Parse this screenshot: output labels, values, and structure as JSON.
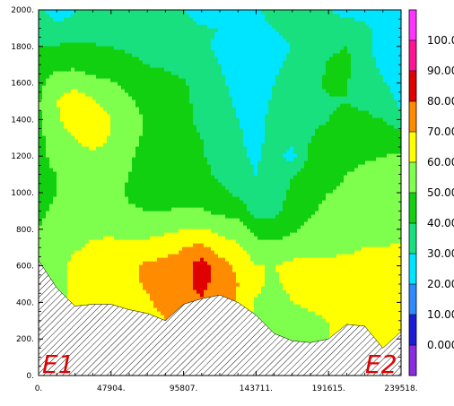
{
  "chart_data": {
    "type": "heatmap",
    "title": "",
    "xlabel": "",
    "ylabel": "",
    "xlim": [
      0,
      239518
    ],
    "ylim": [
      0,
      2000
    ],
    "x_tick_labels": [
      "0.",
      "47904.",
      "95807.",
      "143711.",
      "191615.",
      "239518."
    ],
    "y_tick_labels": [
      "0.",
      "200.",
      "400.",
      "600.",
      "800.",
      "1000.",
      "1200.",
      "1400.",
      "1600.",
      "1800.",
      "2000."
    ],
    "section_labels": {
      "start": "E1",
      "end": "E2"
    },
    "colorbar": {
      "labels": [
        "0.000",
        "10.00",
        "20.00",
        "30.00",
        "40.00",
        "50.00",
        "60.00",
        "70.00",
        "80.00",
        "90.00",
        "100.0"
      ],
      "levels": [
        0,
        10,
        20,
        30,
        40,
        50,
        60,
        70,
        80,
        90,
        100
      ],
      "colors": [
        "#8a2be2",
        "#1c1cd8",
        "#2e8bff",
        "#00e5ff",
        "#19e07f",
        "#10d010",
        "#7fff4d",
        "#ffff00",
        "#ff8c00",
        "#e00000",
        "#ff1493",
        "#ff33ff"
      ]
    },
    "x": [
      0,
      11976,
      23952,
      35928,
      47904,
      59880,
      71855,
      83831,
      95807,
      107783,
      119759,
      131735,
      143711,
      155687,
      167663,
      179639,
      191615,
      203590,
      215566,
      227542,
      239518
    ],
    "y": [
      0,
      100,
      200,
      300,
      400,
      500,
      600,
      700,
      800,
      900,
      1000,
      1100,
      1200,
      1300,
      1400,
      1500,
      1600,
      1700,
      1800,
      1900,
      2000
    ],
    "terrain": [
      630,
      480,
      380,
      390,
      390,
      360,
      340,
      300,
      390,
      420,
      440,
      400,
      330,
      230,
      190,
      180,
      200,
      280,
      270,
      150,
      240
    ],
    "values": [
      [
        55,
        57,
        59,
        60,
        60,
        62,
        65,
        70,
        75,
        76,
        74,
        65,
        57,
        52,
        55,
        58,
        60,
        62,
        65,
        66,
        66
      ],
      [
        55,
        57,
        59,
        60,
        60,
        62,
        65,
        70,
        75,
        76,
        74,
        65,
        57,
        52,
        55,
        58,
        60,
        62,
        65,
        66,
        66
      ],
      [
        55,
        57,
        59,
        60,
        60,
        62,
        65,
        70,
        75,
        76,
        74,
        65,
        57,
        52,
        55,
        58,
        60,
        62,
        65,
        66,
        66
      ],
      [
        55,
        57,
        59,
        60,
        60,
        62,
        65,
        70,
        75,
        76,
        74,
        65,
        57,
        52,
        55,
        58,
        60,
        62,
        65,
        66,
        66
      ],
      [
        55,
        58,
        61,
        63,
        64,
        66,
        69,
        73,
        77,
        79,
        76,
        68,
        59,
        54,
        60,
        62,
        63,
        64,
        66,
        66,
        66
      ],
      [
        54,
        58,
        62,
        66,
        67,
        68,
        71,
        74,
        78,
        82,
        77,
        70,
        62,
        58,
        63,
        64,
        64,
        64,
        64,
        64,
        64
      ],
      [
        52,
        57,
        63,
        67,
        69,
        68,
        72,
        74,
        75,
        86,
        75,
        68,
        60,
        60,
        63,
        62,
        62,
        62,
        62,
        62,
        62
      ],
      [
        52,
        56,
        59,
        62,
        64,
        63,
        64,
        66,
        70,
        73,
        66,
        62,
        55,
        53,
        55,
        57,
        58,
        59,
        60,
        60,
        61
      ],
      [
        50,
        53,
        56,
        58,
        57,
        55,
        56,
        58,
        60,
        61,
        57,
        55,
        46,
        45,
        49,
        53,
        55,
        56,
        57,
        58,
        58
      ],
      [
        49,
        51,
        54,
        56,
        54,
        51,
        50,
        50,
        51,
        51,
        48,
        46,
        36,
        38,
        44,
        49,
        52,
        54,
        55,
        56,
        57
      ],
      [
        48,
        50,
        52,
        54,
        52,
        49,
        48,
        47,
        47,
        45,
        42,
        38,
        33,
        36,
        42,
        47,
        50,
        52,
        54,
        55,
        56
      ],
      [
        48,
        50,
        52,
        54,
        53,
        50,
        47,
        46,
        45,
        43,
        38,
        34,
        30,
        34,
        40,
        45,
        47,
        50,
        52,
        53,
        54
      ],
      [
        48,
        52,
        55,
        57,
        55,
        51,
        47,
        45,
        44,
        41,
        36,
        31,
        29,
        33,
        27,
        42,
        45,
        47,
        49,
        50,
        51
      ],
      [
        48,
        54,
        60,
        65,
        59,
        53,
        48,
        45,
        43,
        40,
        36,
        31,
        28,
        33,
        32,
        40,
        43,
        45,
        46,
        47,
        45
      ],
      [
        49,
        58,
        68,
        68,
        60,
        54,
        49,
        45,
        42,
        38,
        34,
        30,
        28,
        32,
        35,
        38,
        40,
        42,
        42,
        40,
        34
      ],
      [
        49,
        60,
        67,
        61,
        56,
        51,
        47,
        44,
        42,
        37,
        32,
        29,
        27,
        31,
        35,
        37,
        39,
        40,
        38,
        35,
        28
      ],
      [
        48,
        54,
        57,
        53,
        51,
        48,
        45,
        43,
        41,
        36,
        31,
        28,
        28,
        30,
        34,
        36,
        42,
        40,
        36,
        31,
        26
      ],
      [
        46,
        48,
        48,
        46,
        44,
        42,
        40,
        39,
        37,
        34,
        30,
        27,
        28,
        29,
        31,
        35,
        41,
        43,
        33,
        28,
        25
      ],
      [
        40,
        41,
        42,
        41,
        40,
        39,
        38,
        37,
        36,
        32,
        28,
        27,
        28,
        29,
        30,
        32,
        38,
        40,
        32,
        27,
        25
      ],
      [
        33,
        33,
        34,
        35,
        36,
        37,
        36,
        35,
        33,
        31,
        30,
        28,
        29,
        30,
        31,
        33,
        37,
        35,
        31,
        28,
        27
      ],
      [
        34,
        25,
        30,
        32,
        34,
        35,
        35,
        34,
        31,
        25,
        21,
        26,
        29,
        32,
        34,
        36,
        30,
        26,
        28,
        27,
        27
      ]
    ]
  }
}
